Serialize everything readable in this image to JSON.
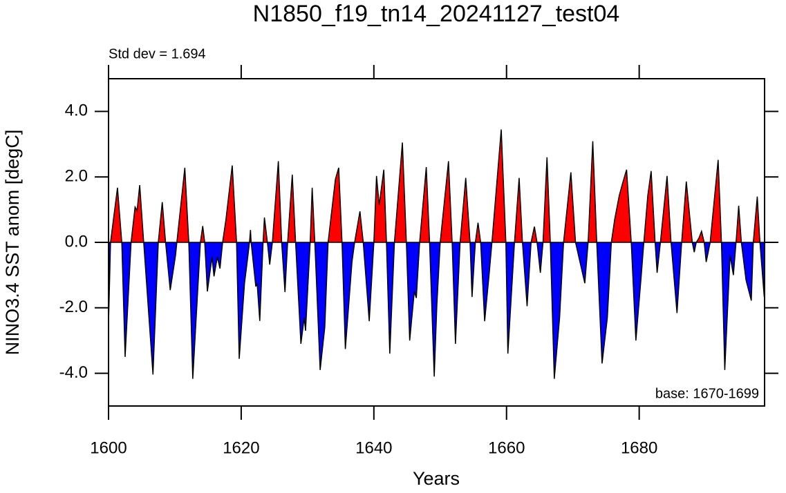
{
  "chart_data": {
    "type": "area",
    "title": "N1850_f19_tn14_20241127_test04",
    "subtitle": "Std dev = 1.694",
    "annotation": "base: 1670-1699",
    "xlabel": "Years",
    "ylabel": "NINO3.4 SST anom [degC]",
    "color_above": "#ff0000",
    "color_below": "#0000ff",
    "line_color": "#000000",
    "xlim": [
      1600,
      1698.9
    ],
    "ylim": [
      -5,
      5
    ],
    "xticks": [
      1600,
      1620,
      1640,
      1660,
      1680
    ],
    "yticks": [
      {
        "value": -4,
        "label": "-4.0"
      },
      {
        "value": -2,
        "label": "-2.0"
      },
      {
        "value": 0,
        "label": "0.0"
      },
      {
        "value": 2,
        "label": "2.0"
      },
      {
        "value": 4,
        "label": "4.0"
      }
    ],
    "x": [
      1600,
      1600.3,
      1601.35,
      1602.0,
      1602.5,
      1603.4,
      1604.0,
      1604.3,
      1604.7,
      1605.3,
      1606.7,
      1607.5,
      1608.1,
      1608.6,
      1609.3,
      1610.1,
      1610.3,
      1611.5,
      1612.1,
      1612.7,
      1613.85,
      1614.2,
      1614.5,
      1614.9,
      1615.6,
      1615.9,
      1616.4,
      1616.8,
      1617.2,
      1617.7,
      1618.65,
      1619.3,
      1619.7,
      1620.5,
      1620.9,
      1621.25,
      1621.4,
      1621.5,
      1622.2,
      1622.4,
      1622.8,
      1623.3,
      1623.5,
      1623.95,
      1624.3,
      1624.7,
      1625.6,
      1626.1,
      1626.6,
      1627.0,
      1627.7,
      1628.2,
      1629.0,
      1629.5,
      1629.7,
      1630.4,
      1630.7,
      1631.1,
      1631.9,
      1632.6,
      1633.1,
      1634.2,
      1634.7,
      1635.2,
      1635.7,
      1636.7,
      1637.1,
      1637.9,
      1638.4,
      1639.3,
      1640.0,
      1640.4,
      1640.8,
      1641.5,
      1641.9,
      1642.4,
      1643.1,
      1644.3,
      1644.9,
      1645.4,
      1646.1,
      1646.4,
      1646.9,
      1647.9,
      1648.4,
      1649.1,
      1649.5,
      1650.0,
      1651.25,
      1651.8,
      1652.3,
      1653.0,
      1653.85,
      1654.5,
      1654.8,
      1655.3,
      1655.7,
      1656.1,
      1656.7,
      1657.4,
      1657.8,
      1659.2,
      1659.9,
      1660.2,
      1661.2,
      1661.9,
      1662.4,
      1663.1,
      1663.7,
      1664.2,
      1664.6,
      1665.1,
      1665.5,
      1666.1,
      1666.6,
      1667.2,
      1668.0,
      1668.6,
      1669.7,
      1670.4,
      1671.8,
      1672.3,
      1673.0,
      1673.6,
      1674.4,
      1675.2,
      1675.8,
      1676.3,
      1677.0,
      1677.6,
      1678.1,
      1678.8,
      1679.5,
      1680.3,
      1680.7,
      1681.3,
      1681.8,
      1682.4,
      1682.7,
      1683.2,
      1684.2,
      1684.8,
      1685.7,
      1686.4,
      1687.1,
      1688.0,
      1688.3,
      1688.6,
      1689.0,
      1689.4,
      1689.8,
      1690.1,
      1690.7,
      1691.9,
      1692.4,
      1692.9,
      1693.7,
      1694.2,
      1694.6,
      1695.0,
      1695.4,
      1696.1,
      1696.9,
      1697.2,
      1697.8,
      1698.2,
      1698.85
    ],
    "values": [
      -2.5,
      0,
      1.67,
      0,
      -3.5,
      0,
      1.08,
      0.97,
      1.75,
      0,
      -4.04,
      0,
      1.23,
      0,
      -1.46,
      -0.4,
      0,
      2.28,
      0,
      -4.17,
      0,
      0.5,
      0,
      -1.5,
      -0.45,
      -1.04,
      -0.45,
      -0.8,
      0,
      0.7,
      2.35,
      0,
      -3.56,
      -1.25,
      -0.6,
      0,
      0.38,
      0,
      -1.35,
      -1.25,
      -2.4,
      0,
      0.76,
      0,
      -0.68,
      0,
      2.48,
      0,
      -1.52,
      0,
      2.07,
      0,
      -3.1,
      -2.3,
      -2.7,
      0,
      1.67,
      0,
      -3.9,
      -2.6,
      0,
      1.93,
      2.28,
      0,
      -3.26,
      -0.6,
      0,
      0.95,
      0,
      -2.41,
      0,
      2.03,
      1.14,
      2.22,
      0,
      -3.4,
      0,
      3.05,
      0,
      -3.0,
      -1.5,
      -1.7,
      0,
      2.3,
      0,
      -4.1,
      -1.9,
      0,
      2.48,
      0,
      -3.1,
      0,
      1.97,
      0,
      -1.67,
      0,
      0.6,
      0,
      -2.41,
      -0.93,
      0,
      3.45,
      0,
      -3.4,
      0,
      1.97,
      0,
      -1.95,
      0,
      0.48,
      0,
      -0.93,
      0,
      2.6,
      0,
      -4.17,
      -2.3,
      0,
      2.14,
      0,
      -1.25,
      0,
      3.09,
      0,
      -3.7,
      -2.3,
      0,
      0.7,
      1.44,
      1.88,
      2.22,
      0,
      -3.0,
      -1.04,
      0,
      1.44,
      2.18,
      0,
      -0.93,
      0,
      2.03,
      0,
      -2.16,
      0,
      1.86,
      0,
      -0.3,
      0,
      0.13,
      0.34,
      0,
      -0.6,
      0,
      2.52,
      0,
      -3.9,
      -0.4,
      -1.0,
      0,
      1.12,
      0,
      -1.15,
      -1.78,
      0,
      1.4,
      0,
      -1.67
    ]
  }
}
